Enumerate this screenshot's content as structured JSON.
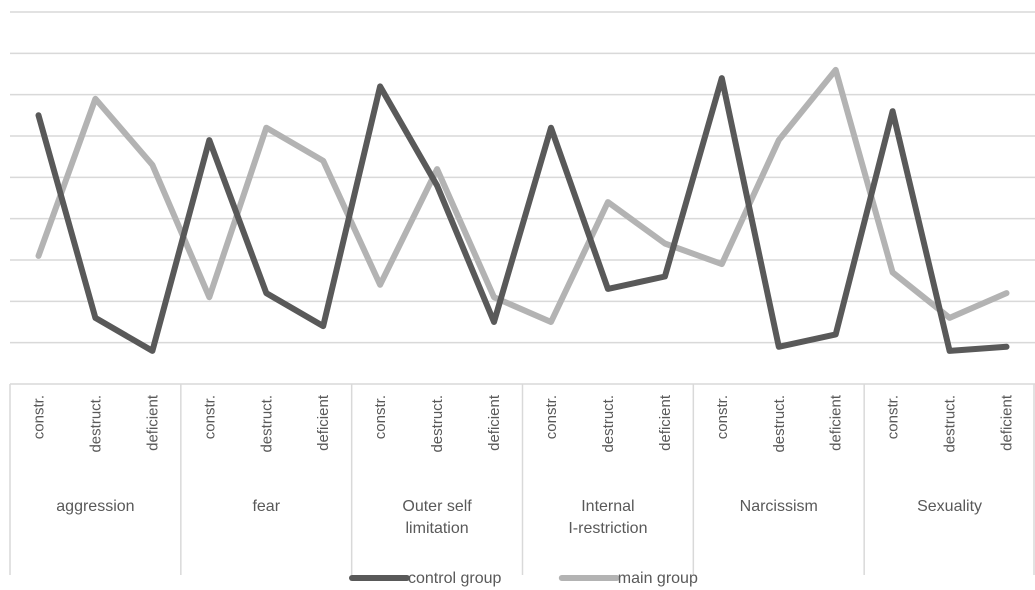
{
  "chart_data": {
    "type": "line",
    "title": "",
    "xlabel": "",
    "ylabel": "",
    "ylim": [
      0,
      9
    ],
    "grid": true,
    "legend_position": "bottom",
    "groups": [
      {
        "label": "aggression",
        "subcategories": [
          "constr.",
          "destruct.",
          "deficient"
        ]
      },
      {
        "label": "fear",
        "subcategories": [
          "constr.",
          "destruct.",
          "deficient"
        ]
      },
      {
        "label": "Outer self limitation",
        "subcategories": [
          "constr.",
          "destruct.",
          "deficient"
        ]
      },
      {
        "label": "Internal I-restriction",
        "subcategories": [
          "constr.",
          "destruct.",
          "deficient"
        ]
      },
      {
        "label": "Narcissism",
        "subcategories": [
          "constr.",
          "destruct.",
          "deficient"
        ]
      },
      {
        "label": "Sexuality",
        "subcategories": [
          "constr.",
          "destruct.",
          "deficient"
        ]
      }
    ],
    "series": [
      {
        "name": "control group",
        "color": "#595959",
        "values": [
          6.5,
          1.6,
          0.8,
          5.9,
          2.2,
          1.4,
          7.2,
          4.8,
          1.5,
          6.2,
          2.3,
          2.6,
          7.4,
          0.9,
          1.2,
          6.6,
          0.8,
          0.9
        ]
      },
      {
        "name": "main group",
        "color": "#b3b3b3",
        "values": [
          3.1,
          6.9,
          5.3,
          2.1,
          6.2,
          5.4,
          2.4,
          5.2,
          2.1,
          1.5,
          4.4,
          3.4,
          2.9,
          5.9,
          7.6,
          2.7,
          1.6,
          2.2
        ]
      }
    ]
  }
}
